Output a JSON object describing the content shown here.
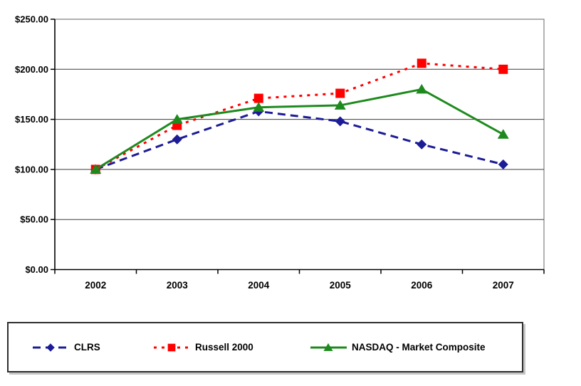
{
  "chart_data": {
    "type": "line",
    "title": "",
    "xlabel": "",
    "ylabel": "",
    "categories": [
      "2002",
      "2003",
      "2004",
      "2005",
      "2006",
      "2007"
    ],
    "series": [
      {
        "name": "CLRS",
        "color": "#1c1c96",
        "marker": "diamond",
        "line": "long-dash",
        "values": [
          100,
          130,
          158,
          148,
          125,
          105
        ]
      },
      {
        "name": "Russell 2000",
        "color": "#ff0000",
        "marker": "square",
        "line": "dotted",
        "values": [
          100,
          144,
          171,
          176,
          206,
          200
        ]
      },
      {
        "name": "NASDAQ - Market Composite",
        "color": "#1e8a1e",
        "marker": "triangle",
        "line": "solid",
        "values": [
          100,
          150,
          162,
          164,
          180,
          135
        ]
      }
    ],
    "ylim": [
      0,
      250
    ],
    "y_tick_step": 50,
    "y_tick_labels": [
      "$0.00",
      "$50.00",
      "$100.00",
      "$150.00",
      "$200.00",
      "$250.00"
    ],
    "grid": true,
    "legend_position": "bottom",
    "colors": {
      "gridline": "#3a3a3a",
      "plot_border": "#808080",
      "axis": "#000000"
    }
  }
}
